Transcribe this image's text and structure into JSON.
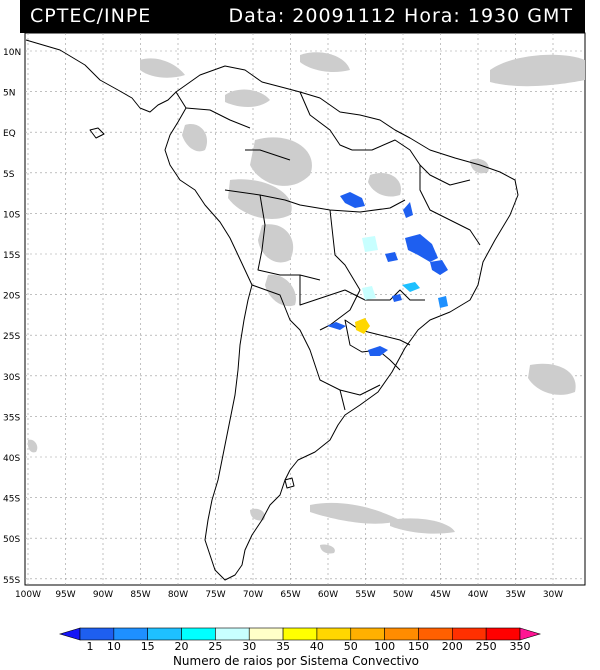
{
  "header": {
    "source": "CPTEC/INPE",
    "date_label": "Data:",
    "date_value": "20091112",
    "hour_label": "Hora:",
    "hour_value": "1930 GMT"
  },
  "axes": {
    "lat_labels": [
      "10N",
      "5N",
      "EQ",
      "5S",
      "10S",
      "15S",
      "20S",
      "25S",
      "30S",
      "35S",
      "40S",
      "45S",
      "50S",
      "55S"
    ],
    "lon_labels": [
      "100W",
      "95W",
      "90W",
      "85W",
      "80W",
      "75W",
      "70W",
      "65W",
      "60W",
      "55W",
      "50W",
      "45W",
      "40W",
      "35W",
      "30W"
    ]
  },
  "colorbar": {
    "ticks": [
      "1",
      "10",
      "15",
      "20",
      "25",
      "30",
      "35",
      "40",
      "50",
      "100",
      "150",
      "200",
      "250",
      "350"
    ],
    "colors": [
      "#1515f5",
      "#1e5ff0",
      "#1e90ff",
      "#1ec0ff",
      "#00ffff",
      "#c8ffff",
      "#ffffc8",
      "#ffff00",
      "#ffd700",
      "#ffb000",
      "#ff8c00",
      "#ff6000",
      "#ff3000",
      "#ff0000",
      "#ff1493"
    ],
    "label": "Numero de raios por Sistema Convectivo"
  },
  "colors": {
    "cloud": "#cdcdcd",
    "land_outline": "#000000",
    "grid": "#9a9a9a"
  }
}
